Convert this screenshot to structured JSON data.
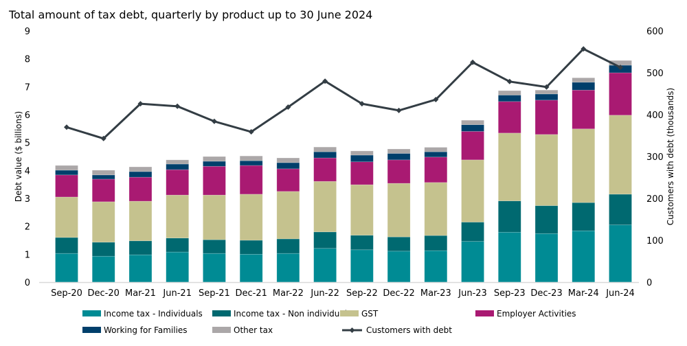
{
  "chart_data": {
    "type": "bar",
    "stacked": true,
    "title": "Total amount of tax debt, quarterly by product up to 30 June 2024",
    "ylabel": "Debt value ($ billions)",
    "y2label": "Customers with debt (thousands)",
    "ylim": [
      0,
      9
    ],
    "y2lim": [
      0,
      600
    ],
    "yticks": [
      "0",
      "1",
      "2",
      "3",
      "4",
      "5",
      "6",
      "7",
      "8",
      "9"
    ],
    "y2ticks": [
      "0",
      "100",
      "200",
      "300",
      "400",
      "500",
      "600"
    ],
    "grid": false,
    "legend_position": "bottom",
    "categories": [
      "Sep-20",
      "Dec-20",
      "Mar-21",
      "Jun-21",
      "Sep-21",
      "Dec-21",
      "Mar-22",
      "Jun-22",
      "Sep-22",
      "Dec-22",
      "Mar-23",
      "Jun-23",
      "Sep-23",
      "Dec-23",
      "Mar-24",
      "Jun-24"
    ],
    "series": [
      {
        "name": "Income tax - Individuals",
        "color": "#008b94",
        "values": [
          1.03,
          0.93,
          0.98,
          1.08,
          1.03,
          1.0,
          1.03,
          1.21,
          1.16,
          1.11,
          1.13,
          1.46,
          1.79,
          1.74,
          1.84,
          2.05
        ]
      },
      {
        "name": "Income tax - Non individuals",
        "color": "#006970",
        "values": [
          0.57,
          0.5,
          0.5,
          0.5,
          0.49,
          0.5,
          0.52,
          0.59,
          0.52,
          0.51,
          0.54,
          0.69,
          1.12,
          1.0,
          1.01,
          1.1
        ]
      },
      {
        "name": "GST",
        "color": "#c5c28e",
        "values": [
          1.45,
          1.45,
          1.42,
          1.54,
          1.6,
          1.65,
          1.7,
          1.81,
          1.81,
          1.92,
          1.9,
          2.23,
          2.43,
          2.55,
          2.64,
          2.83
        ]
      },
      {
        "name": "Employer Activities",
        "color": "#a91a72",
        "values": [
          0.79,
          0.81,
          0.86,
          0.91,
          1.03,
          1.03,
          0.81,
          0.84,
          0.82,
          0.84,
          0.91,
          1.02,
          1.13,
          1.23,
          1.39,
          1.52
        ]
      },
      {
        "name": "Working for Families",
        "color": "#003f6b",
        "values": [
          0.17,
          0.15,
          0.2,
          0.2,
          0.18,
          0.17,
          0.22,
          0.22,
          0.24,
          0.23,
          0.19,
          0.24,
          0.23,
          0.22,
          0.28,
          0.27
        ]
      },
      {
        "name": "Other tax",
        "color": "#aba7a8",
        "values": [
          0.17,
          0.17,
          0.17,
          0.15,
          0.17,
          0.17,
          0.17,
          0.17,
          0.15,
          0.16,
          0.16,
          0.16,
          0.16,
          0.14,
          0.16,
          0.17
        ]
      }
    ],
    "line_series": {
      "name": "Customers with debt",
      "color": "#333d44",
      "axis": "right",
      "values": [
        370,
        343,
        426,
        420,
        384,
        359,
        418,
        480,
        426,
        410,
        436,
        525,
        479,
        466,
        557,
        513
      ]
    }
  }
}
